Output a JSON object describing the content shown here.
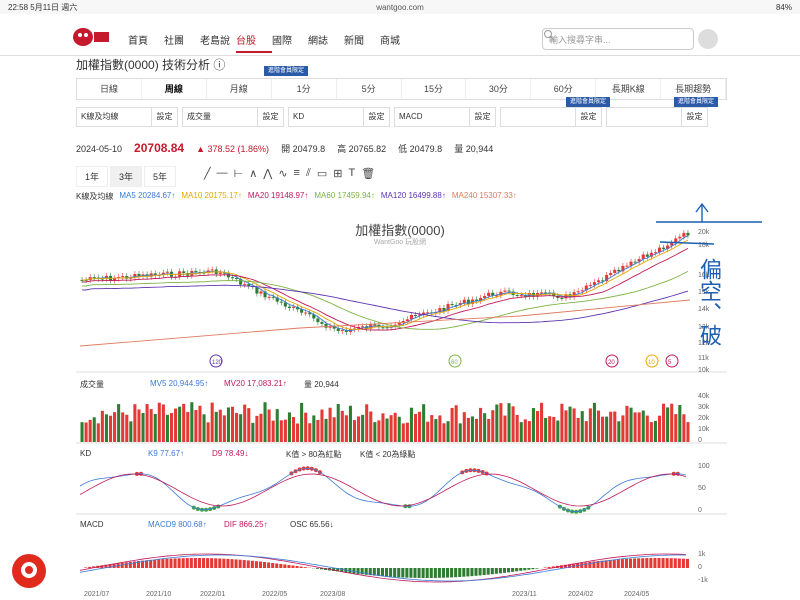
{
  "status": {
    "time": "22:58",
    "date": "5月11日 週六",
    "url": "wantgoo.com",
    "battery": "84%"
  },
  "nav": {
    "items": [
      "首頁",
      "社團",
      "老島說",
      "台股",
      "國際",
      "網誌",
      "新聞",
      "商城"
    ],
    "active": "台股"
  },
  "search": {
    "placeholder": "輸入搜尋字串..."
  },
  "page": {
    "title": "加權指數(0000) 技術分析"
  },
  "tabs": [
    "日線",
    "周線",
    "月線",
    "1分",
    "5分",
    "15分",
    "30分",
    "60分",
    "長期K線",
    "長期趨勢"
  ],
  "badge_text": "進階會員限定",
  "selectors": [
    {
      "value": "K線及均線",
      "button": "設定"
    },
    {
      "value": "成交量",
      "button": "設定"
    },
    {
      "value": "KD",
      "button": "設定"
    },
    {
      "value": "MACD",
      "button": "設定"
    },
    {
      "value": "",
      "button": "設定"
    },
    {
      "value": "",
      "button": "設定"
    }
  ],
  "quote": {
    "date": "2024-05-10",
    "close": "20708.84",
    "change": "▲ 378.52 (1.86%)",
    "open": "開 20479.8",
    "high": "高 20765.82",
    "low": "低 20479.8",
    "volume": "量 20,944"
  },
  "periods": [
    "1年",
    "3年",
    "5年"
  ],
  "ma_panel_label": "K線及均線",
  "ma": [
    {
      "label": "MA5 20284.67↑",
      "color": "#3a7bd5"
    },
    {
      "label": "MA10 20175.17↑",
      "color": "#e6a800"
    },
    {
      "label": "MA20 19148.97↑",
      "color": "#c2185b"
    },
    {
      "label": "MA60 17459.94↑",
      "color": "#7cb342"
    },
    {
      "label": "MA120 16499.88↑",
      "color": "#5e35b1"
    },
    {
      "label": "MA240 15307.33↑",
      "color": "#e07a5f"
    }
  ],
  "chart": {
    "title": "加權指數(0000)",
    "subtitle": "WantGoo 玩股網",
    "yticks": [
      "20k",
      "18k",
      "16k",
      "15k",
      "14k",
      "13k",
      "12k",
      "11k",
      "10k"
    ]
  },
  "volume": {
    "label": "成交量",
    "mv5": "MV5 20,944.95↑",
    "mv20": "MV20 17,083.21↑",
    "vol": "量 20,944",
    "yticks": [
      "40k",
      "30k",
      "20k",
      "10k",
      "0"
    ]
  },
  "kd": {
    "label": "KD",
    "k": "K9 77.67↑",
    "d": "D9 78.49↓",
    "note1": "K值 > 80為紅點",
    "note2": "K值 < 20為綠點",
    "yticks": [
      "100",
      "50",
      "0"
    ]
  },
  "macd": {
    "label": "MACD",
    "macd9": "MACD9 800.68↑",
    "dif": "DIF 866.25↑",
    "osc": "OSC 65.56↓",
    "yticks": [
      "1k",
      "0",
      "-1k"
    ]
  },
  "xaxis": [
    "2021/07",
    "2021/10",
    "2022/01",
    "2022/05",
    "2023/08",
    "2023/11",
    "2024/02",
    "2024/05"
  ],
  "annotation": {
    "text": "偏空、破"
  },
  "markers": [
    "120",
    "60",
    "20",
    "10",
    "5"
  ]
}
